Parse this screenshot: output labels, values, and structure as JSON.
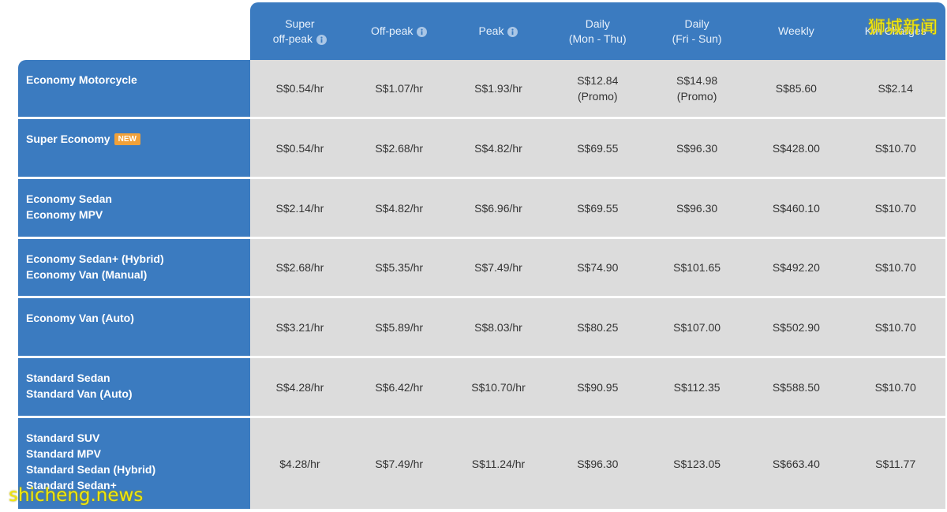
{
  "colors": {
    "header_bg": "#3b7bc0",
    "label_bg": "#3b7bc0",
    "cell_bg": "#dcdcdc",
    "badge_bg": "#f0a13a",
    "watermark": "#f1e70a"
  },
  "header": {
    "columns": [
      {
        "lines": [
          "Super",
          "off-peak"
        ],
        "info": true
      },
      {
        "lines": [
          "Off-peak"
        ],
        "info": true
      },
      {
        "lines": [
          "Peak"
        ],
        "info": true
      },
      {
        "lines": [
          "Daily",
          "(Mon - Thu)"
        ],
        "info": false
      },
      {
        "lines": [
          "Daily",
          "(Fri - Sun)"
        ],
        "info": false
      },
      {
        "lines": [
          "Weekly"
        ],
        "info": false
      },
      {
        "lines": [
          "Km Charges"
        ],
        "info": false
      }
    ],
    "info_icon": "info-icon"
  },
  "rows": [
    {
      "labels": [
        "Economy Motorcycle"
      ],
      "badge": "",
      "values": [
        [
          "S$0.54/hr"
        ],
        [
          "S$1.07/hr"
        ],
        [
          "S$1.93/hr"
        ],
        [
          "S$12.84",
          "(Promo)"
        ],
        [
          "S$14.98",
          "(Promo)"
        ],
        [
          "S$85.60"
        ],
        [
          "S$2.14"
        ]
      ]
    },
    {
      "labels": [
        "Super Economy"
      ],
      "badge": "NEW",
      "values": [
        [
          "S$0.54/hr"
        ],
        [
          "S$2.68/hr"
        ],
        [
          "S$4.82/hr"
        ],
        [
          "S$69.55"
        ],
        [
          "S$96.30"
        ],
        [
          "S$428.00"
        ],
        [
          "S$10.70"
        ]
      ]
    },
    {
      "labels": [
        "Economy Sedan",
        "Economy MPV"
      ],
      "badge": "",
      "values": [
        [
          "S$2.14/hr"
        ],
        [
          "S$4.82/hr"
        ],
        [
          "S$6.96/hr"
        ],
        [
          "S$69.55"
        ],
        [
          "S$96.30"
        ],
        [
          "S$460.10"
        ],
        [
          "S$10.70"
        ]
      ]
    },
    {
      "labels": [
        "Economy Sedan+ (Hybrid)",
        "Economy Van (Manual)"
      ],
      "badge": "",
      "values": [
        [
          "S$2.68/hr"
        ],
        [
          "S$5.35/hr"
        ],
        [
          "S$7.49/hr"
        ],
        [
          "S$74.90"
        ],
        [
          "S$101.65"
        ],
        [
          "S$492.20"
        ],
        [
          "S$10.70"
        ]
      ]
    },
    {
      "labels": [
        "Economy Van (Auto)"
      ],
      "badge": "",
      "values": [
        [
          "S$3.21/hr"
        ],
        [
          "S$5.89/hr"
        ],
        [
          "S$8.03/hr"
        ],
        [
          "S$80.25"
        ],
        [
          "S$107.00"
        ],
        [
          "S$502.90"
        ],
        [
          "S$10.70"
        ]
      ]
    },
    {
      "labels": [
        "Standard Sedan",
        "Standard Van (Auto)"
      ],
      "badge": "",
      "values": [
        [
          "S$4.28/hr"
        ],
        [
          "S$6.42/hr"
        ],
        [
          "S$10.70/hr"
        ],
        [
          "S$90.95"
        ],
        [
          "S$112.35"
        ],
        [
          "S$588.50"
        ],
        [
          "S$10.70"
        ]
      ]
    },
    {
      "labels": [
        "Standard SUV",
        "Standard MPV",
        "Standard Sedan (Hybrid)",
        "Standard Sedan+"
      ],
      "badge": "",
      "values": [
        [
          "$4.28/hr"
        ],
        [
          "S$7.49/hr"
        ],
        [
          "S$11.24/hr"
        ],
        [
          "S$96.30"
        ],
        [
          "S$123.05"
        ],
        [
          "S$663.40"
        ],
        [
          "S$11.77"
        ]
      ]
    }
  ],
  "watermarks": {
    "top_right": "狮城新闻",
    "bottom_left": "shicheng.news"
  }
}
